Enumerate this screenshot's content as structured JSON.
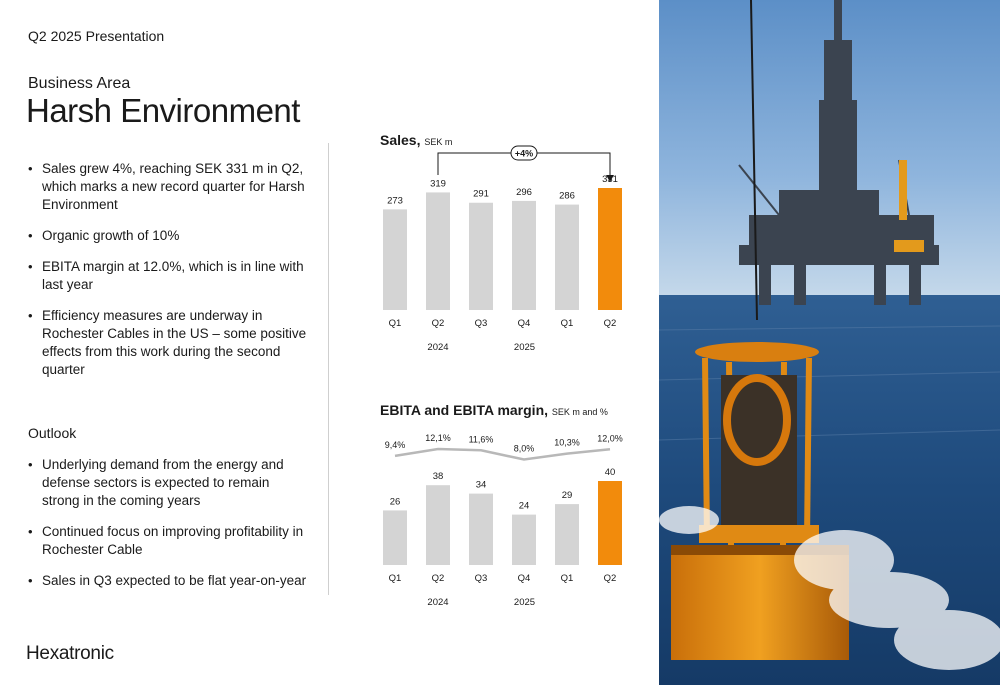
{
  "header": {
    "label": "Q2 2025 Presentation"
  },
  "business_area": {
    "eyebrow": "Business Area",
    "title": "Harsh Environment"
  },
  "highlights": [
    "Sales grew 4%, reaching SEK 331 m in Q2, which marks a new record quarter for Harsh Environment",
    "Organic growth of 10%",
    "EBITA margin at 12.0%, which is in line with last year",
    "Efficiency measures are underway in Rochester Cables in the US – some positive effects from this work during the second quarter"
  ],
  "outlook": {
    "heading": "Outlook",
    "items": [
      "Underlying demand from the energy and defense sectors is expected to remain strong in the coming years",
      "Continued focus on improving profitability in Rochester Cable",
      "Sales in Q3 expected to be flat year-on-year"
    ]
  },
  "logo": {
    "text": "Hexatronic"
  },
  "colors": {
    "bar_grey": "#d4d4d4",
    "highlight_orange": "#f28b0c",
    "margin_line": "#b8b8b8"
  },
  "chart_data": [
    {
      "type": "bar",
      "title": "Sales,",
      "unit": "SEK m",
      "categories": [
        "Q1",
        "Q2",
        "Q3",
        "Q4",
        "Q1",
        "Q2"
      ],
      "years": [
        "2024",
        "2025"
      ],
      "values": [
        273,
        319,
        291,
        296,
        286,
        331
      ],
      "highlight_index": 5,
      "annotation": {
        "label": "+4%",
        "from_index": 1,
        "to_index": 5
      },
      "ylim": [
        0,
        331
      ]
    },
    {
      "type": "bar",
      "title": "EBITA and EBITA margin,",
      "unit": "SEK m and %",
      "categories": [
        "Q1",
        "Q2",
        "Q3",
        "Q4",
        "Q1",
        "Q2"
      ],
      "years": [
        "2024",
        "2025"
      ],
      "values": [
        26,
        38,
        34,
        24,
        29,
        40
      ],
      "highlight_index": 5,
      "line": {
        "values": [
          9.4,
          12.1,
          11.6,
          8.0,
          10.3,
          12.0
        ],
        "labels": [
          "9,4%",
          "12,1%",
          "11,6%",
          "8,0%",
          "10,3%",
          "12,0%"
        ]
      },
      "ylim": [
        0,
        40
      ]
    }
  ],
  "photo": {
    "subject": "offshore-platform-photo"
  }
}
